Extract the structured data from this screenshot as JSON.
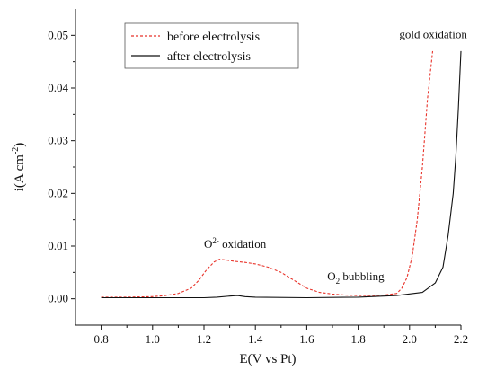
{
  "chart_data": {
    "type": "line",
    "xlabel": "E(V vs Pt)",
    "ylabel": "i(A cm",
    "ylabel_sup": "-2",
    "ylabel_end": ")",
    "xlim": [
      0.7,
      2.2
    ],
    "ylim": [
      -0.005,
      0.055
    ],
    "xticks": [
      "0.8",
      "1.0",
      "1.2",
      "1.4",
      "1.6",
      "1.8",
      "2.0",
      "2.2"
    ],
    "yticks": [
      "0.00",
      "0.01",
      "0.02",
      "0.03",
      "0.04",
      "0.05"
    ],
    "grid": false,
    "legend_position": "top-left",
    "series": [
      {
        "name": "before electrolysis",
        "color": "#e8332a",
        "dash": "dashed",
        "x": [
          0.8,
          0.9,
          1.0,
          1.05,
          1.1,
          1.15,
          1.18,
          1.21,
          1.24,
          1.26,
          1.28,
          1.32,
          1.36,
          1.4,
          1.45,
          1.5,
          1.55,
          1.6,
          1.65,
          1.7,
          1.75,
          1.8,
          1.85,
          1.9,
          1.95,
          1.97,
          1.99,
          2.01,
          2.03,
          2.05,
          2.07,
          2.09
        ],
        "y": [
          0.0003,
          0.0003,
          0.0004,
          0.0006,
          0.001,
          0.002,
          0.0035,
          0.0055,
          0.007,
          0.0075,
          0.0074,
          0.0071,
          0.0069,
          0.0066,
          0.006,
          0.005,
          0.0035,
          0.002,
          0.0012,
          0.0009,
          0.0007,
          0.0006,
          0.0006,
          0.0007,
          0.001,
          0.002,
          0.004,
          0.008,
          0.015,
          0.025,
          0.038,
          0.047
        ]
      },
      {
        "name": "after electrolysis",
        "color": "#111111",
        "dash": "solid",
        "x": [
          0.8,
          1.0,
          1.2,
          1.25,
          1.3,
          1.33,
          1.36,
          1.4,
          1.6,
          1.8,
          1.95,
          2.05,
          2.1,
          2.13,
          2.15,
          2.17,
          2.18,
          2.19,
          2.2
        ],
        "y": [
          0.0002,
          0.0002,
          0.0002,
          0.0003,
          0.0005,
          0.0006,
          0.0004,
          0.0003,
          0.0002,
          0.0003,
          0.0006,
          0.0012,
          0.003,
          0.006,
          0.012,
          0.02,
          0.027,
          0.036,
          0.047
        ]
      }
    ],
    "annotations": [
      {
        "text": "O",
        "sup": "2-",
        "rest": " oxidation",
        "x": 1.2,
        "y": 0.0097
      },
      {
        "text": "O",
        "sub": "2",
        "rest": " bubbling",
        "x": 1.68,
        "y": 0.0035
      },
      {
        "text": "gold oxidation",
        "x": 1.96,
        "y": 0.0495
      }
    ]
  }
}
